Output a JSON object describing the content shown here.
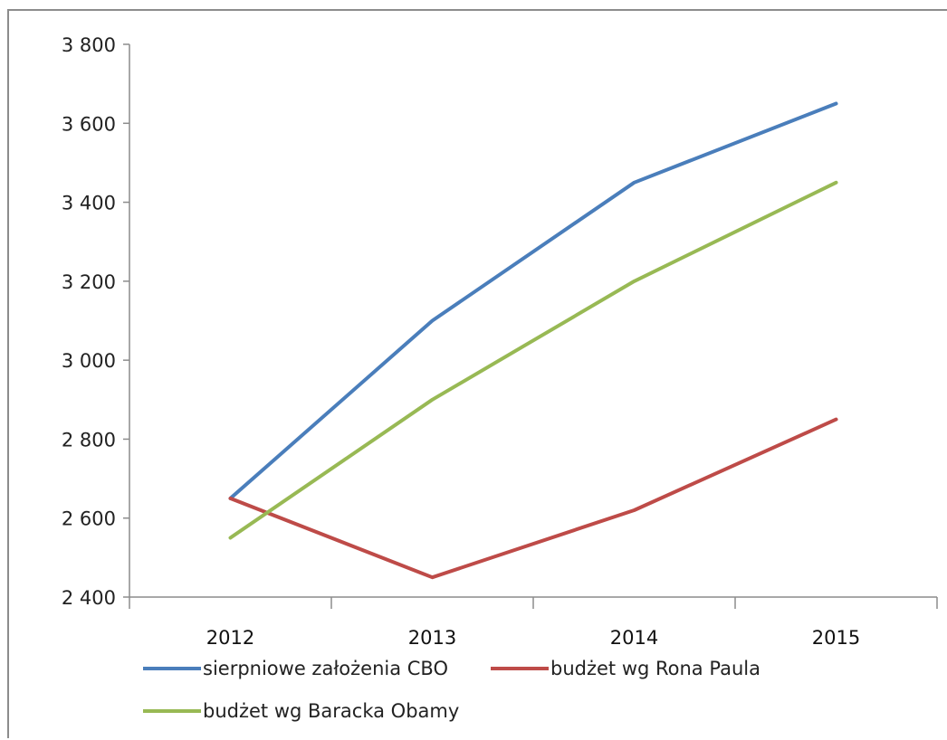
{
  "chart_data": {
    "type": "line",
    "categories": [
      "2012",
      "2013",
      "2014",
      "2015"
    ],
    "ylim": [
      2400,
      3800
    ],
    "yticks": [
      2400,
      2600,
      2800,
      3000,
      3200,
      3400,
      3600,
      3800
    ],
    "ytick_labels": [
      "2 400",
      "2 600",
      "2 800",
      "3 000",
      "3 200",
      "3 400",
      "3 600",
      "3 800"
    ],
    "grid": false,
    "legend_position": "bottom",
    "series": [
      {
        "name": "sierpniowe założenia CBO",
        "color": "#4a7ebb",
        "values": [
          2650,
          3100,
          3450,
          3650
        ]
      },
      {
        "name": "budżet wg Rona Paula",
        "color": "#be4b48",
        "values": [
          2650,
          2450,
          2620,
          2850
        ]
      },
      {
        "name": "budżet wg Baracka Obamy",
        "color": "#98b954",
        "values": [
          2550,
          2900,
          3200,
          3450
        ]
      }
    ]
  }
}
